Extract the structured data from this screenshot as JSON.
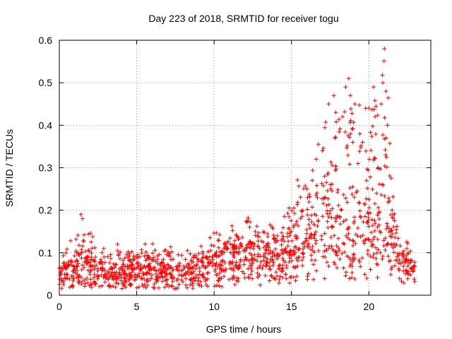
{
  "chart_data": {
    "type": "scatter",
    "title": "Day 223 of 2018, SRMTID for receiver togu",
    "xlabel": "GPS time / hours",
    "ylabel": "SRMTID / TECUs",
    "xlim": [
      0,
      24
    ],
    "ylim": [
      0,
      0.6
    ],
    "x_ticks": [
      "0",
      "5",
      "10",
      "15",
      "20"
    ],
    "y_ticks": [
      "0",
      "0.1",
      "0.2",
      "0.3",
      "0.4",
      "0.5",
      "0.6"
    ],
    "grid": true,
    "marker": "+",
    "series_color": "#ff0000",
    "envelope": [
      {
        "x": 0.0,
        "base": 0.04,
        "spread": 0.05
      },
      {
        "x": 1.0,
        "base": 0.05,
        "spread": 0.07
      },
      {
        "x": 1.5,
        "base": 0.06,
        "spread": 0.09
      },
      {
        "x": 3.0,
        "base": 0.045,
        "spread": 0.06
      },
      {
        "x": 5.0,
        "base": 0.05,
        "spread": 0.05
      },
      {
        "x": 8.0,
        "base": 0.045,
        "spread": 0.05
      },
      {
        "x": 10.0,
        "base": 0.06,
        "spread": 0.06
      },
      {
        "x": 12.0,
        "base": 0.08,
        "spread": 0.08
      },
      {
        "x": 14.0,
        "base": 0.07,
        "spread": 0.08
      },
      {
        "x": 15.0,
        "base": 0.08,
        "spread": 0.15
      },
      {
        "x": 16.0,
        "base": 0.1,
        "spread": 0.2
      },
      {
        "x": 17.0,
        "base": 0.13,
        "spread": 0.28
      },
      {
        "x": 18.5,
        "base": 0.12,
        "spread": 0.35
      },
      {
        "x": 19.5,
        "base": 0.1,
        "spread": 0.3
      },
      {
        "x": 20.5,
        "base": 0.12,
        "spread": 0.35
      },
      {
        "x": 21.0,
        "base": 0.15,
        "spread": 0.4
      },
      {
        "x": 21.5,
        "base": 0.1,
        "spread": 0.2
      },
      {
        "x": 22.0,
        "base": 0.07,
        "spread": 0.05
      },
      {
        "x": 23.0,
        "base": 0.06,
        "spread": 0.05
      }
    ],
    "points": [
      {
        "x": 1.4,
        "y": 0.19
      },
      {
        "x": 1.5,
        "y": 0.18
      },
      {
        "x": 12.3,
        "y": 0.16
      },
      {
        "x": 16.6,
        "y": 0.32
      },
      {
        "x": 17.0,
        "y": 0.34
      },
      {
        "x": 17.4,
        "y": 0.45
      },
      {
        "x": 17.8,
        "y": 0.37
      },
      {
        "x": 18.3,
        "y": 0.42
      },
      {
        "x": 18.5,
        "y": 0.49
      },
      {
        "x": 18.7,
        "y": 0.51
      },
      {
        "x": 18.8,
        "y": 0.47
      },
      {
        "x": 19.1,
        "y": 0.45
      },
      {
        "x": 19.3,
        "y": 0.31
      },
      {
        "x": 19.6,
        "y": 0.36
      },
      {
        "x": 20.0,
        "y": 0.44
      },
      {
        "x": 20.3,
        "y": 0.49
      },
      {
        "x": 20.4,
        "y": 0.42
      },
      {
        "x": 20.8,
        "y": 0.45
      },
      {
        "x": 20.9,
        "y": 0.5
      },
      {
        "x": 21.0,
        "y": 0.58
      },
      {
        "x": 21.1,
        "y": 0.48
      },
      {
        "x": 21.2,
        "y": 0.4
      },
      {
        "x": 20.6,
        "y": 0.3
      },
      {
        "x": 21.5,
        "y": 0.2
      },
      {
        "x": 16.0,
        "y": 0.25
      },
      {
        "x": 15.7,
        "y": 0.2
      }
    ],
    "generated_point_count": 1500,
    "random_seed": 20180811
  }
}
